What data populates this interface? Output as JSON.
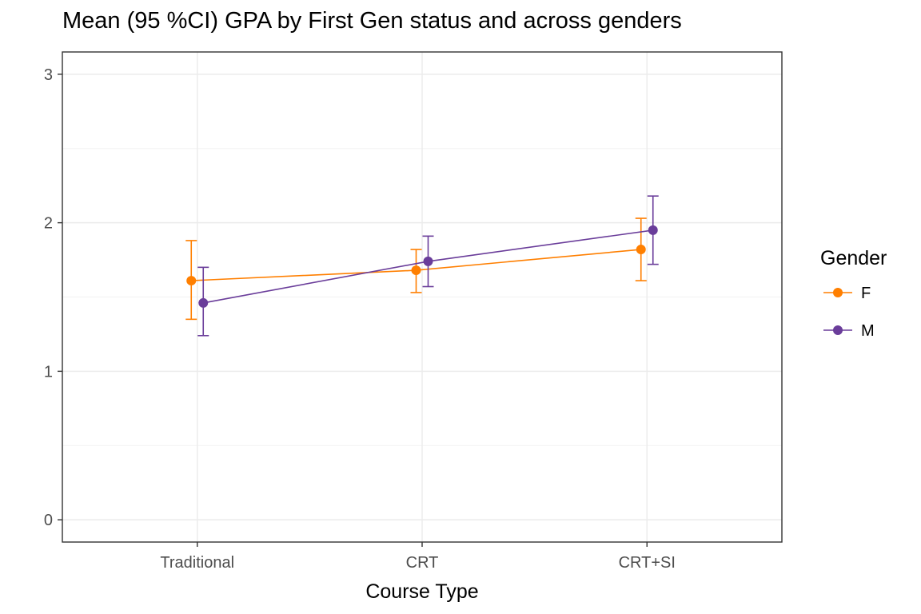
{
  "chart_data": {
    "type": "line",
    "title": "Mean (95 %CI) GPA by First Gen status and across genders",
    "xlabel": "Course Type",
    "ylabel": "",
    "categories": [
      "Traditional",
      "CRT",
      "CRT+SI"
    ],
    "ylim": [
      -0.15,
      3.15
    ],
    "yticks": [
      0,
      1,
      2,
      3
    ],
    "grid": true,
    "legend": {
      "title": "Gender",
      "placement": "right"
    },
    "series": [
      {
        "name": "F",
        "color": "#FF7F00",
        "values": [
          1.61,
          1.68,
          1.82
        ],
        "ci_low": [
          1.35,
          1.53,
          1.61
        ],
        "ci_high": [
          1.88,
          1.82,
          2.03
        ]
      },
      {
        "name": "M",
        "color": "#6A3D9A",
        "values": [
          1.46,
          1.74,
          1.95
        ],
        "ci_low": [
          1.24,
          1.57,
          1.72
        ],
        "ci_high": [
          1.7,
          1.91,
          2.18
        ]
      }
    ]
  }
}
